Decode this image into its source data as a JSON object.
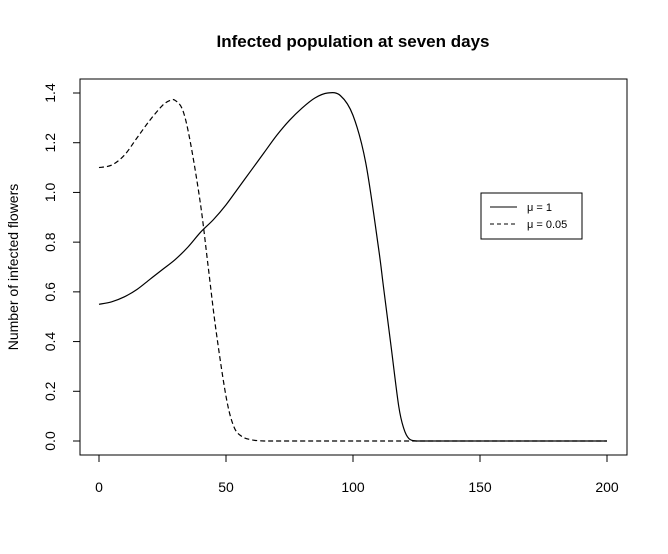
{
  "chart_data": {
    "type": "line",
    "title": "Infected population at seven days",
    "xlabel": "",
    "ylabel": "Number of infected flowers",
    "xlim": [
      0,
      200
    ],
    "ylim": [
      0,
      1.4
    ],
    "xticks": [
      0,
      50,
      100,
      150,
      200
    ],
    "xtick_labels": [
      "0",
      "50",
      "100",
      "150",
      "200"
    ],
    "yticks": [
      0.0,
      0.2,
      0.4,
      0.6,
      0.8,
      1.0,
      1.2,
      1.4
    ],
    "ytick_labels": [
      "0.0",
      "0.2",
      "0.4",
      "0.6",
      "0.8",
      "1.0",
      "1.2",
      "1.4"
    ],
    "grid": false,
    "legend_position": "right",
    "series": [
      {
        "name": "μ = 1",
        "legend_symbol": "μ",
        "legend_suffix": " = 1",
        "line_style": "solid",
        "x": [
          0,
          5,
          10,
          15,
          20,
          25,
          30,
          35,
          40,
          45,
          50,
          55,
          60,
          65,
          70,
          75,
          80,
          85,
          90,
          95,
          100,
          105,
          110,
          112,
          115,
          118,
          120,
          122,
          125,
          130,
          140,
          150,
          160,
          170,
          180,
          190,
          200
        ],
        "y": [
          0.55,
          0.56,
          0.58,
          0.61,
          0.65,
          0.69,
          0.73,
          0.78,
          0.84,
          0.89,
          0.95,
          1.02,
          1.09,
          1.16,
          1.23,
          1.29,
          1.34,
          1.38,
          1.4,
          1.39,
          1.31,
          1.12,
          0.78,
          0.62,
          0.38,
          0.14,
          0.05,
          0.01,
          0.0,
          0.0,
          0.0,
          0.0,
          0.0,
          0.0,
          0.0,
          0.0,
          0.0
        ]
      },
      {
        "name": "μ = 0.05",
        "legend_symbol": "μ",
        "legend_suffix": " = 0.05",
        "line_style": "dashed",
        "x": [
          0,
          5,
          10,
          15,
          20,
          25,
          28,
          30,
          33,
          36,
          40,
          43,
          46,
          50,
          53,
          56,
          60,
          65,
          70,
          80,
          100,
          150,
          200
        ],
        "y": [
          1.1,
          1.11,
          1.15,
          1.22,
          1.29,
          1.35,
          1.37,
          1.37,
          1.33,
          1.2,
          0.95,
          0.7,
          0.45,
          0.18,
          0.06,
          0.02,
          0.005,
          0.0,
          0.0,
          0.0,
          0.0,
          0.0,
          0.0
        ]
      }
    ]
  }
}
